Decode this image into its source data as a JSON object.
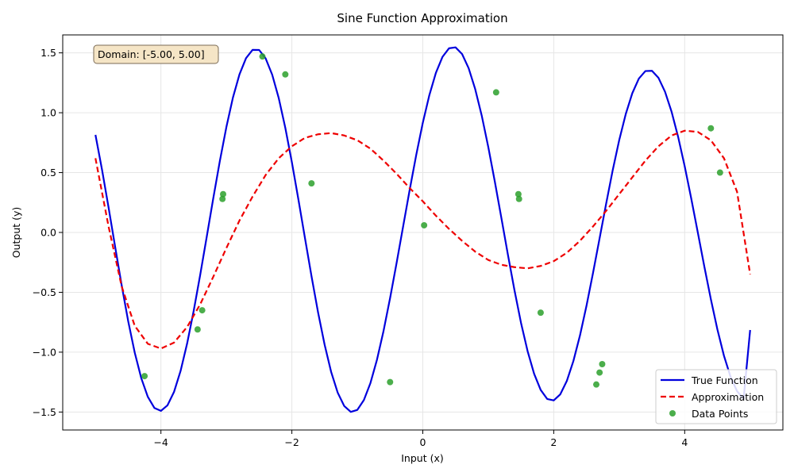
{
  "chart_data": {
    "type": "line",
    "title": "Sine Function Approximation",
    "xlabel": "Input (x)",
    "ylabel": "Output (y)",
    "xlim": [
      -5.5,
      5.5
    ],
    "ylim": [
      -1.65,
      1.65
    ],
    "xticks": [
      -4,
      -2,
      0,
      2,
      4
    ],
    "xtick_labels": [
      "−4",
      "−2",
      "0",
      "2",
      "4"
    ],
    "yticks": [
      -1.5,
      -1.0,
      -0.5,
      0.0,
      0.5,
      1.0,
      1.5
    ],
    "ytick_labels": [
      "−1.5",
      "−1.0",
      "−0.5",
      "0.0",
      "0.5",
      "1.0",
      "1.5"
    ],
    "grid": true,
    "legend_position": "lower-right",
    "annotation": "Domain: [-5.00, 5.00]",
    "series": [
      {
        "name": "True Function",
        "style": "solid",
        "color": "#0000dd",
        "x": [
          -5.0,
          -4.9,
          -4.8,
          -4.7,
          -4.6,
          -4.5,
          -4.4,
          -4.3,
          -4.2,
          -4.1,
          -4.0,
          -3.9,
          -3.8,
          -3.7,
          -3.6,
          -3.5,
          -3.4,
          -3.3,
          -3.2,
          -3.1,
          -3.0,
          -2.9,
          -2.8,
          -2.7,
          -2.6,
          -2.5,
          -2.4,
          -2.3,
          -2.2,
          -2.1,
          -2.0,
          -1.9,
          -1.8,
          -1.7,
          -1.6,
          -1.5,
          -1.4,
          -1.3,
          -1.2,
          -1.1,
          -1.0,
          -0.9,
          -0.8,
          -0.7,
          -0.6,
          -0.5,
          -0.4,
          -0.3,
          -0.2,
          -0.1,
          0.0,
          0.1,
          0.2,
          0.3,
          0.4,
          0.5,
          0.6,
          0.7,
          0.8,
          0.9,
          1.0,
          1.1,
          1.2,
          1.3,
          1.4,
          1.5,
          1.6,
          1.7,
          1.8,
          1.9,
          2.0,
          2.1,
          2.2,
          2.3,
          2.4,
          2.5,
          2.6,
          2.7,
          2.8,
          2.9,
          3.0,
          3.1,
          3.2,
          3.3,
          3.4,
          3.5,
          3.6,
          3.7,
          3.8,
          3.9,
          4.0,
          4.1,
          4.2,
          4.3,
          4.4,
          4.5,
          4.6,
          4.7,
          4.8,
          4.9,
          5.0
        ],
        "y": [
          0.815,
          0.525,
          0.209,
          -0.118,
          -0.44,
          -0.741,
          -1.004,
          -1.218,
          -1.373,
          -1.466,
          -1.49,
          -1.444,
          -1.332,
          -1.157,
          -0.928,
          -0.656,
          -0.354,
          -0.035,
          0.287,
          0.597,
          0.881,
          1.127,
          1.321,
          1.456,
          1.525,
          1.524,
          1.453,
          1.317,
          1.121,
          0.873,
          0.587,
          0.275,
          -0.047,
          -0.366,
          -0.667,
          -0.937,
          -1.165,
          -1.338,
          -1.45,
          -1.499,
          -1.482,
          -1.4,
          -1.258,
          -1.063,
          -0.823,
          -0.549,
          -0.254,
          0.052,
          0.357,
          0.648,
          0.916,
          1.147,
          1.333,
          1.466,
          1.538,
          1.546,
          1.49,
          1.372,
          1.198,
          0.976,
          0.714,
          0.425,
          0.121,
          -0.186,
          -0.482,
          -0.755,
          -0.99,
          -1.18,
          -1.315,
          -1.391,
          -1.403,
          -1.352,
          -1.24,
          -1.074,
          -0.862,
          -0.613,
          -0.338,
          -0.05,
          0.239,
          0.518,
          0.771,
          0.989,
          1.163,
          1.285,
          1.348,
          1.35,
          1.291,
          1.175,
          1.008,
          0.798,
          0.553,
          0.284,
          0.001,
          -0.284,
          -0.558,
          -0.811,
          -1.03,
          -1.205,
          -1.326,
          -1.389,
          -0.815
        ]
      },
      {
        "name": "Approximation",
        "style": "dashed",
        "color": "#ee0000",
        "x": [
          -5.0,
          -4.8,
          -4.6,
          -4.4,
          -4.2,
          -4.0,
          -3.8,
          -3.6,
          -3.4,
          -3.2,
          -3.0,
          -2.8,
          -2.6,
          -2.4,
          -2.2,
          -2.0,
          -1.8,
          -1.6,
          -1.4,
          -1.2,
          -1.0,
          -0.8,
          -0.6,
          -0.4,
          -0.2,
          0.0,
          0.2,
          0.4,
          0.6,
          0.8,
          1.0,
          1.2,
          1.4,
          1.6,
          1.8,
          2.0,
          2.2,
          2.4,
          2.6,
          2.8,
          3.0,
          3.2,
          3.4,
          3.6,
          3.8,
          4.0,
          4.2,
          4.4,
          4.6,
          4.8,
          5.0
        ],
        "y": [
          0.62,
          0.05,
          -0.45,
          -0.78,
          -0.93,
          -0.97,
          -0.92,
          -0.79,
          -0.6,
          -0.37,
          -0.13,
          0.1,
          0.3,
          0.48,
          0.62,
          0.72,
          0.79,
          0.82,
          0.83,
          0.81,
          0.77,
          0.7,
          0.6,
          0.49,
          0.37,
          0.26,
          0.14,
          0.03,
          -0.07,
          -0.16,
          -0.23,
          -0.27,
          -0.29,
          -0.3,
          -0.28,
          -0.24,
          -0.17,
          -0.07,
          0.05,
          0.18,
          0.32,
          0.46,
          0.6,
          0.72,
          0.81,
          0.85,
          0.84,
          0.77,
          0.62,
          0.34,
          -0.35
        ]
      },
      {
        "name": "Data Points",
        "style": "scatter",
        "color": "#2ca02c",
        "x": [
          -4.25,
          -3.44,
          -3.37,
          -3.06,
          -3.05,
          -2.45,
          -2.1,
          -1.7,
          -0.5,
          0.02,
          1.12,
          1.46,
          1.47,
          1.8,
          2.65,
          2.7,
          2.74,
          4.4,
          4.54
        ],
        "y": [
          -1.2,
          -0.81,
          -0.65,
          0.28,
          0.32,
          1.47,
          1.32,
          0.41,
          -1.25,
          0.06,
          1.17,
          0.32,
          0.28,
          -0.67,
          -1.27,
          -1.17,
          -1.1,
          0.87,
          0.5
        ]
      }
    ]
  }
}
